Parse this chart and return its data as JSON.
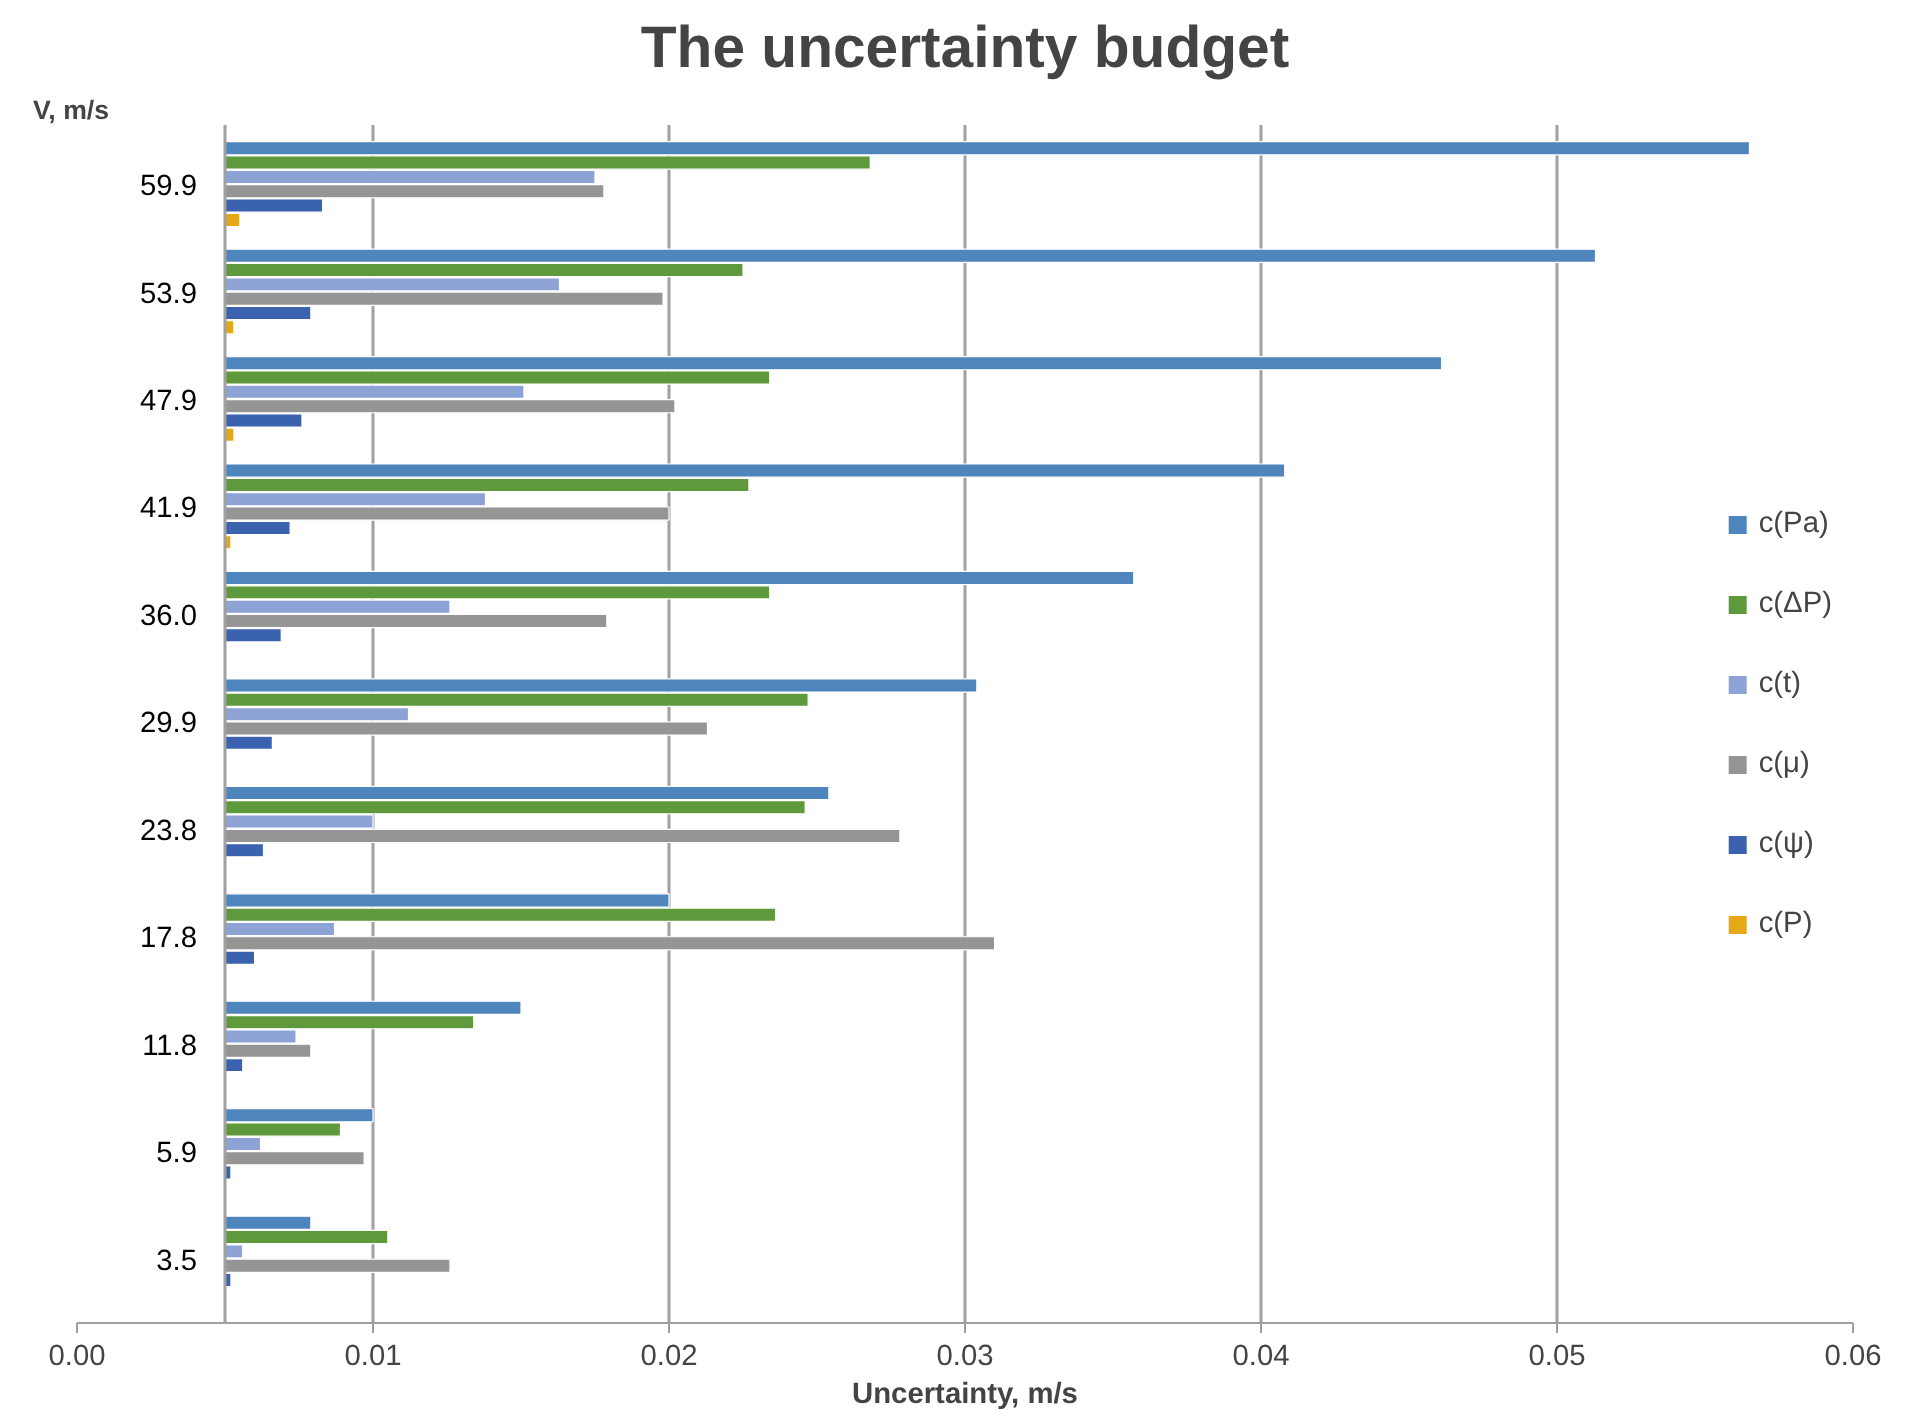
{
  "chart_data": {
    "type": "bar",
    "orientation": "horizontal",
    "title": "The uncertainty budget",
    "ylabel": "V, m/s",
    "xlabel": "Uncertainty, m/s",
    "categories": [
      "59.9",
      "53.9",
      "47.9",
      "41.9",
      "36.0",
      "29.9",
      "23.8",
      "17.8",
      "11.8",
      "5.9",
      "3.5"
    ],
    "ref_lines": [
      {
        "axis": "x",
        "value": 0.005,
        "label": null,
        "color": "#a0a0a0"
      }
    ],
    "series": [
      {
        "name": "c(Pa)",
        "color": "#4f85bd",
        "base": [
          0.005,
          0.005,
          0.005,
          0.005,
          0.005,
          0.005,
          0.005,
          0.005,
          0.005,
          0.005,
          0.005
        ],
        "values": [
          0.0515,
          0.0463,
          0.0411,
          0.0358,
          0.0307,
          0.0254,
          0.0204,
          0.015,
          0.01,
          0.005,
          0.0029
        ]
      },
      {
        "name": "c(ΔP)",
        "color": "#5e993b",
        "base": [
          0.005,
          0.005,
          0.005,
          0.005,
          0.005,
          0.005,
          0.005,
          0.005,
          0.005,
          0.005,
          0.005
        ],
        "values": [
          0.0218,
          0.0175,
          0.0184,
          0.0177,
          0.0184,
          0.0197,
          0.0196,
          0.0186,
          0.0084,
          0.0039,
          0.0055
        ]
      },
      {
        "name": "c(t)",
        "color": "#8da2d5",
        "base": [
          0.005,
          0.005,
          0.005,
          0.005,
          0.005,
          0.005,
          0.005,
          0.005,
          0.005,
          0.005,
          0.005
        ],
        "values": [
          0.0125,
          0.0113,
          0.0101,
          0.0088,
          0.0076,
          0.0062,
          0.005,
          0.0037,
          0.0024,
          0.0012,
          0.0006
        ]
      },
      {
        "name": "c(μ)",
        "color": "#959595",
        "base": [
          0.005,
          0.005,
          0.005,
          0.005,
          0.005,
          0.005,
          0.005,
          0.005,
          0.005,
          0.005,
          0.005
        ],
        "values": [
          0.0128,
          0.0148,
          0.0152,
          0.015,
          0.0129,
          0.0163,
          0.0228,
          0.026,
          0.0029,
          0.0047,
          0.0076
        ]
      },
      {
        "name": "c(ψ)",
        "color": "#3b62ae",
        "base": [
          0.005,
          0.005,
          0.005,
          0.005,
          0.005,
          0.005,
          0.005,
          0.005,
          0.005,
          0.005,
          0.005
        ],
        "values": [
          0.0033,
          0.0029,
          0.0026,
          0.0022,
          0.0019,
          0.0016,
          0.0013,
          0.001,
          0.0006,
          0.0002,
          0.0002
        ]
      },
      {
        "name": "c(P)",
        "color": "#e6a817",
        "base": [
          0.005,
          0.005,
          0.005,
          0.005,
          null,
          null,
          null,
          null,
          null,
          null,
          null
        ],
        "values": [
          0.0005,
          0.0003,
          0.0003,
          0.0002,
          null,
          null,
          null,
          null,
          null,
          null,
          null
        ]
      }
    ],
    "xlim": [
      0,
      0.06
    ],
    "xticks": [
      {
        "value": 0,
        "label": "0.00"
      },
      {
        "value": 0.01,
        "label": "0.01"
      },
      {
        "value": 0.02,
        "label": "0.02"
      },
      {
        "value": 0.03,
        "label": "0.03"
      },
      {
        "value": 0.04,
        "label": "0.04"
      },
      {
        "value": 0.05,
        "label": "0.05"
      },
      {
        "value": 0.06,
        "label": "0.06"
      }
    ],
    "grid": "x",
    "legend": "center right"
  }
}
